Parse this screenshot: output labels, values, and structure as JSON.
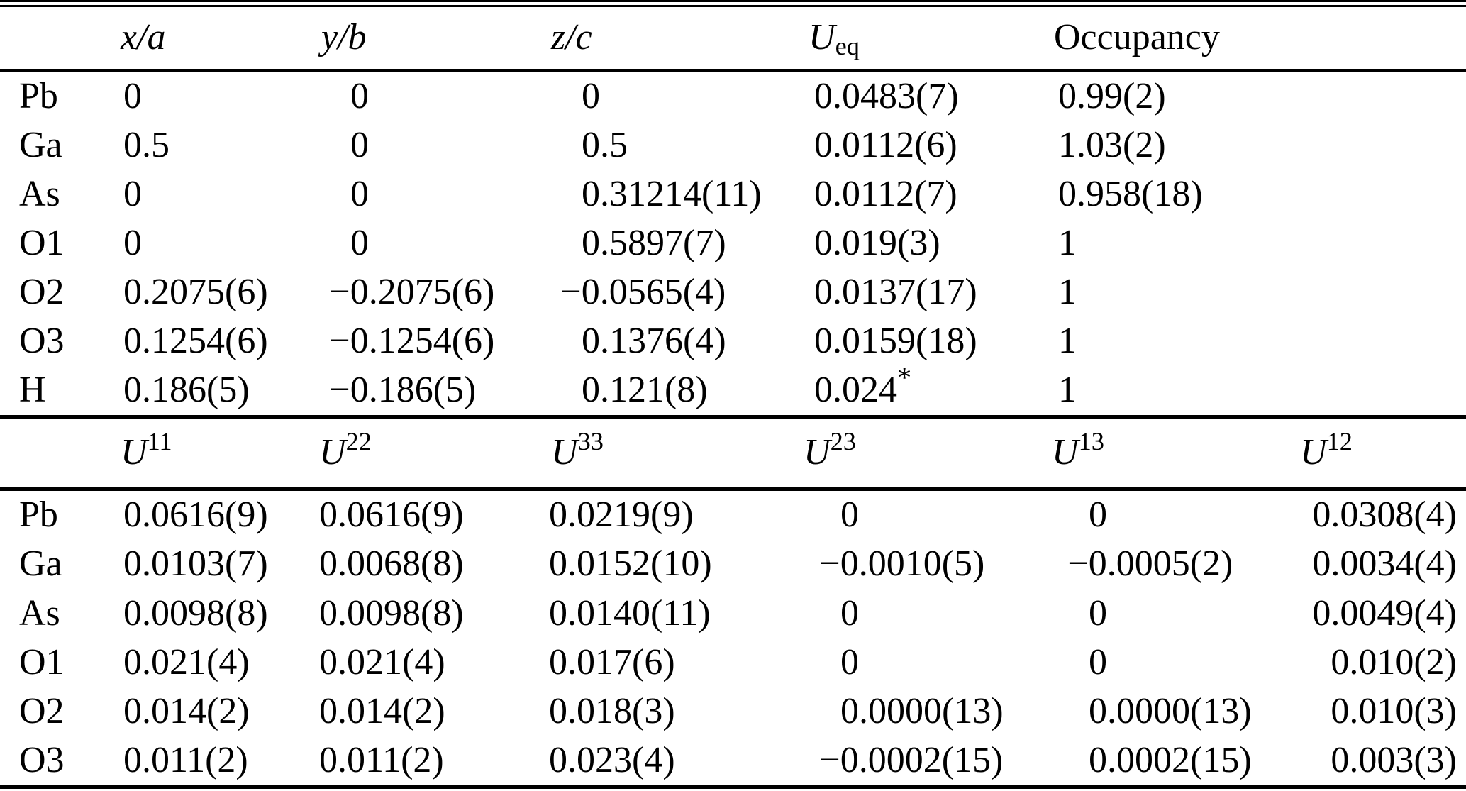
{
  "page": {
    "background": "#ffffff",
    "text_color": "#000000"
  },
  "table1": {
    "headers": {
      "xa": "x/a",
      "yb": "y/b",
      "zc": "z/c",
      "ueq_sym": "U",
      "ueq_sub": "eq",
      "occupancy": "Occupancy"
    },
    "rows": [
      {
        "atom": "Pb",
        "xa": "0",
        "yb": "0",
        "zc": "0",
        "ueq": "0.0483(7)",
        "occ": "0.99(2)"
      },
      {
        "atom": "Ga",
        "xa": "0.5",
        "yb": "0",
        "zc": "0.5",
        "ueq": "0.0112(6)",
        "occ": "1.03(2)"
      },
      {
        "atom": "As",
        "xa": "0",
        "yb": "0",
        "zc": "0.31214(11)",
        "ueq": "0.0112(7)",
        "occ": "0.958(18)"
      },
      {
        "atom": "O1",
        "xa": "0",
        "yb": "0",
        "zc": "0.5897(7)",
        "ueq": "0.019(3)",
        "occ": "1"
      },
      {
        "atom": "O2",
        "xa": "0.2075(6)",
        "yb": "−0.2075(6)",
        "zc": "−0.0565(4)",
        "ueq": "0.0137(17)",
        "occ": "1"
      },
      {
        "atom": "O3",
        "xa": "0.1254(6)",
        "yb": "−0.1254(6)",
        "zc": "0.1376(4)",
        "ueq": "0.0159(18)",
        "occ": "1"
      },
      {
        "atom": "H",
        "xa": "0.186(5)",
        "yb": "−0.186(5)",
        "zc": "0.121(8)",
        "ueq": "0.024",
        "ueq_sup": "*",
        "occ": "1"
      }
    ]
  },
  "table2": {
    "headers": [
      {
        "sym": "U",
        "sup": "11"
      },
      {
        "sym": "U",
        "sup": "22"
      },
      {
        "sym": "U",
        "sup": "33"
      },
      {
        "sym": "U",
        "sup": "23"
      },
      {
        "sym": "U",
        "sup": "13"
      },
      {
        "sym": "U",
        "sup": "12"
      }
    ],
    "rows": [
      {
        "atom": "Pb",
        "u11": "0.0616(9)",
        "u22": "0.0616(9)",
        "u33": "0.0219(9)",
        "u23": "0",
        "u13": "0",
        "u12": "0.0308(4)"
      },
      {
        "atom": "Ga",
        "u11": "0.0103(7)",
        "u22": "0.0068(8)",
        "u33": "0.0152(10)",
        "u23": "−0.0010(5)",
        "u13": "−0.0005(2)",
        "u12": "0.0034(4)"
      },
      {
        "atom": "As",
        "u11": "0.0098(8)",
        "u22": "0.0098(8)",
        "u33": "0.0140(11)",
        "u23": "0",
        "u13": "0",
        "u12": "0.0049(4)"
      },
      {
        "atom": "O1",
        "u11": "0.021(4)",
        "u22": "0.021(4)",
        "u33": "0.017(6)",
        "u23": "0",
        "u13": "0",
        "u12": "0.010(2)"
      },
      {
        "atom": "O2",
        "u11": "0.014(2)",
        "u22": "0.014(2)",
        "u33": "0.018(3)",
        "u23": "0.0000(13)",
        "u13": "0.0000(13)",
        "u12": "0.010(3)"
      },
      {
        "atom": "O3",
        "u11": "0.011(2)",
        "u22": "0.011(2)",
        "u33": "0.023(4)",
        "u23": "−0.0002(15)",
        "u13": "0.0002(15)",
        "u12": "0.003(3)"
      }
    ]
  }
}
